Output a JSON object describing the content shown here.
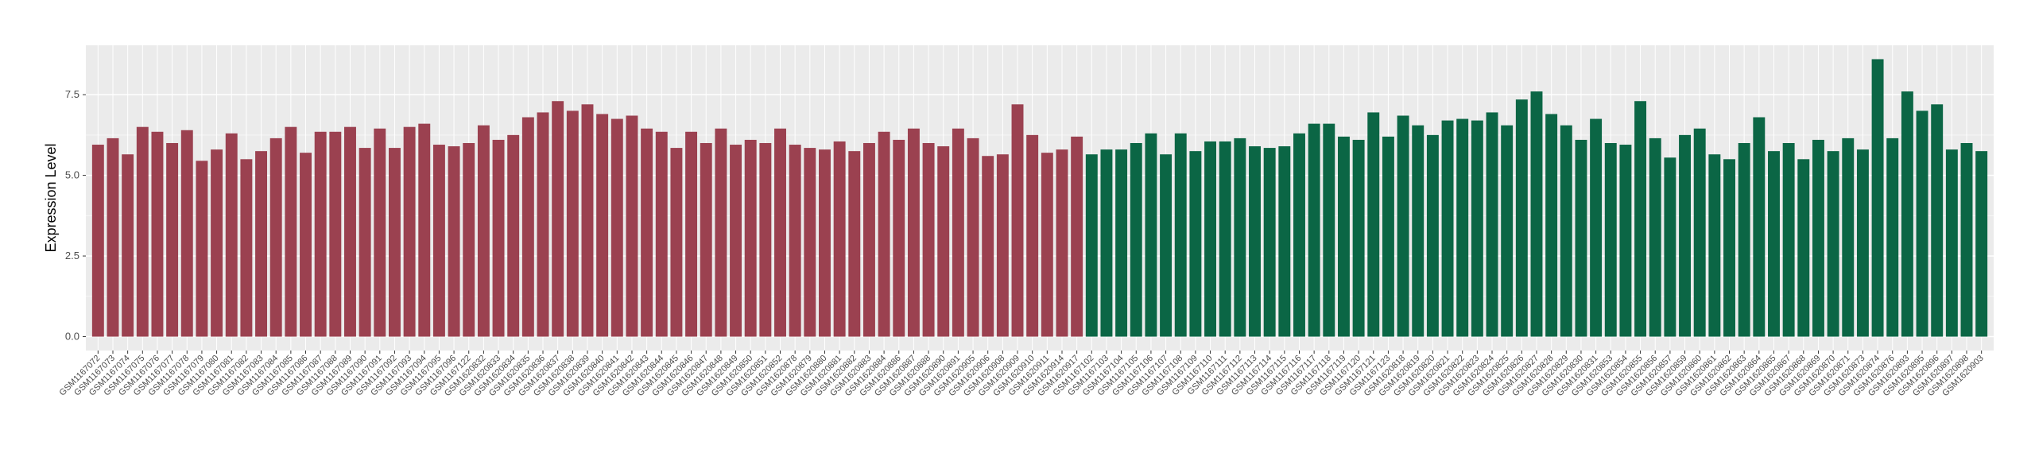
{
  "chart_data": {
    "type": "bar",
    "ylabel": "Expression Level",
    "ylim": [
      -0.43,
      9.03
    ],
    "yticks": [
      {
        "value": 0,
        "label": "0.0"
      },
      2.5,
      {
        "value": 5,
        "label": "5.0"
      },
      7.5
    ],
    "grid": true,
    "series": [
      {
        "color": "#9b4150",
        "categories": [
          "GSM1167072",
          "GSM1167073",
          "GSM1167074",
          "GSM1167075",
          "GSM1167076",
          "GSM1167077",
          "GSM1167078",
          "GSM1167079",
          "GSM1167080",
          "GSM1167081",
          "GSM1167082",
          "GSM1167083",
          "GSM1167084",
          "GSM1167085",
          "GSM1167086",
          "GSM1167087",
          "GSM1167088",
          "GSM1167089",
          "GSM1167090",
          "GSM1167091",
          "GSM1167092",
          "GSM1167093",
          "GSM1167094",
          "GSM1167095",
          "GSM1167096",
          "GSM1167122",
          "GSM1620832",
          "GSM1620833",
          "GSM1620834",
          "GSM1620835",
          "GSM1620836",
          "GSM1620837",
          "GSM1620838",
          "GSM1620839",
          "GSM1620840",
          "GSM1620841",
          "GSM1620842",
          "GSM1620843",
          "GSM1620844",
          "GSM1620845",
          "GSM1620846",
          "GSM1620847",
          "GSM1620848",
          "GSM1620849",
          "GSM1620850",
          "GSM1620851",
          "GSM1620852",
          "GSM1620878",
          "GSM1620879",
          "GSM1620880",
          "GSM1620881",
          "GSM1620882",
          "GSM1620883",
          "GSM1620884",
          "GSM1620886",
          "GSM1620887",
          "GSM1620888",
          "GSM1620890",
          "GSM1620891",
          "GSM1620905",
          "GSM1620906",
          "GSM1620908",
          "GSM1620909",
          "GSM1620910",
          "GSM1620911",
          "GSM1620914",
          "GSM1620917"
        ],
        "values": [
          5.95,
          6.15,
          5.65,
          6.5,
          6.35,
          6.0,
          6.4,
          5.45,
          5.8,
          6.3,
          5.5,
          5.75,
          6.15,
          6.5,
          5.7,
          6.35,
          6.35,
          6.5,
          5.85,
          6.45,
          5.85,
          6.5,
          6.6,
          5.95,
          5.9,
          6.0,
          6.55,
          6.1,
          6.25,
          6.8,
          6.95,
          7.3,
          7.0,
          7.2,
          6.9,
          6.75,
          6.85,
          6.45,
          6.35,
          5.85,
          6.35,
          6.0,
          6.45,
          5.95,
          6.1,
          6.0,
          6.45,
          5.95,
          5.85,
          5.8,
          6.05,
          5.75,
          6.0,
          6.35,
          6.1,
          6.45,
          6.0,
          5.9,
          6.45,
          6.15,
          5.6,
          5.65,
          7.2,
          6.25,
          5.7,
          5.8,
          6.2
        ]
      },
      {
        "color": "#0b6645",
        "categories": [
          "GSM1167102",
          "GSM1167103",
          "GSM1167104",
          "GSM1167105",
          "GSM1167106",
          "GSM1167107",
          "GSM1167108",
          "GSM1167109",
          "GSM1167110",
          "GSM1167111",
          "GSM1167112",
          "GSM1167113",
          "GSM1167114",
          "GSM1167115",
          "GSM1167116",
          "GSM1167117",
          "GSM1167118",
          "GSM1167119",
          "GSM1167120",
          "GSM1167121",
          "GSM1167123",
          "GSM1620818",
          "GSM1620819",
          "GSM1620820",
          "GSM1620821",
          "GSM1620822",
          "GSM1620823",
          "GSM1620824",
          "GSM1620825",
          "GSM1620826",
          "GSM1620827",
          "GSM1620828",
          "GSM1620829",
          "GSM1620830",
          "GSM1620831",
          "GSM1620853",
          "GSM1620854",
          "GSM1620855",
          "GSM1620856",
          "GSM1620857",
          "GSM1620859",
          "GSM1620860",
          "GSM1620861",
          "GSM1620862",
          "GSM1620863",
          "GSM1620864",
          "GSM1620865",
          "GSM1620867",
          "GSM1620868",
          "GSM1620869",
          "GSM1620870",
          "GSM1620871",
          "GSM1620873",
          "GSM1620874",
          "GSM1620876",
          "GSM1620893",
          "GSM1620895",
          "GSM1620896",
          "GSM1620897",
          "GSM1620898",
          "GSM1620903"
        ],
        "values": [
          5.65,
          5.8,
          5.8,
          6.0,
          6.3,
          5.65,
          6.3,
          5.75,
          6.05,
          6.05,
          6.15,
          5.9,
          5.85,
          5.9,
          6.3,
          6.6,
          6.6,
          6.2,
          6.1,
          6.95,
          6.2,
          6.85,
          6.55,
          6.25,
          6.7,
          6.75,
          6.7,
          6.95,
          6.55,
          7.35,
          7.6,
          6.9,
          6.55,
          6.1,
          6.75,
          6.0,
          5.95,
          7.3,
          6.15,
          5.55,
          6.25,
          6.45,
          5.65,
          5.5,
          6.0,
          6.8,
          5.75,
          6.0,
          5.5,
          6.1,
          5.75,
          6.15,
          5.8,
          8.6,
          6.15,
          7.6,
          7.0,
          7.2,
          5.8,
          6.0,
          5.75
        ]
      }
    ]
  }
}
